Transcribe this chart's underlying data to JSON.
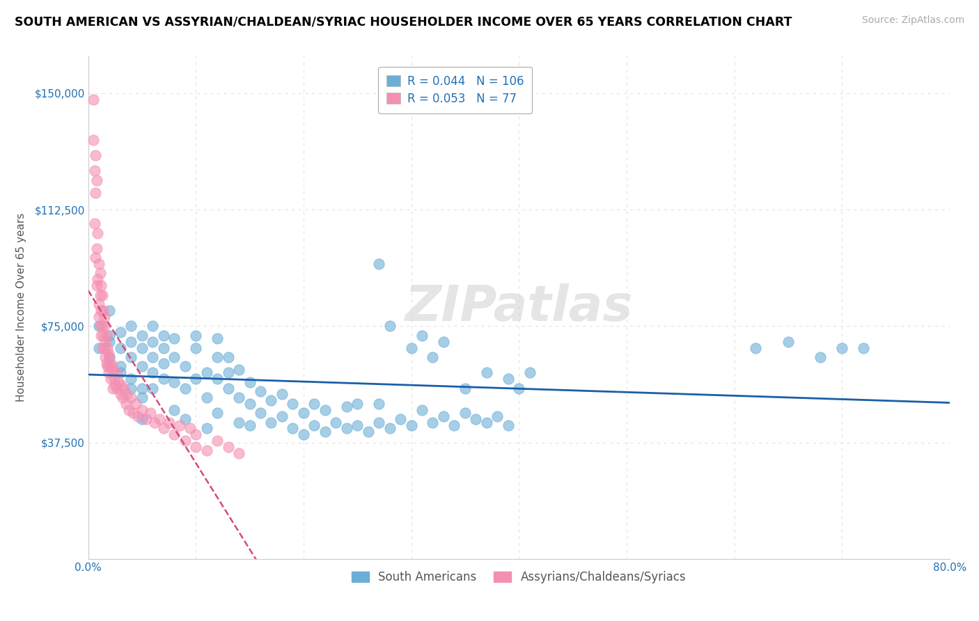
{
  "title": "SOUTH AMERICAN VS ASSYRIAN/CHALDEAN/SYRIAC HOUSEHOLDER INCOME OVER 65 YEARS CORRELATION CHART",
  "source": "Source: ZipAtlas.com",
  "ylabel": "Householder Income Over 65 years",
  "xlim": [
    0.0,
    0.8
  ],
  "ylim": [
    0,
    162000
  ],
  "xticks": [
    0.0,
    0.1,
    0.2,
    0.3,
    0.4,
    0.5,
    0.6,
    0.7,
    0.8
  ],
  "xticklabels": [
    "0.0%",
    "",
    "",
    "",
    "",
    "",
    "",
    "",
    "80.0%"
  ],
  "yticks": [
    0,
    37500,
    75000,
    112500,
    150000
  ],
  "yticklabels": [
    "",
    "$37,500",
    "$75,000",
    "$112,500",
    "$150,000"
  ],
  "legend1_r": "0.044",
  "legend1_n": "106",
  "legend2_r": "0.053",
  "legend2_n": "77",
  "legend1_label": "South Americans",
  "legend2_label": "Assyrians/Chaldeans/Syriacs",
  "color_blue": "#6baed6",
  "color_pink": "#f48fb1",
  "color_blue_line": "#1a5fa8",
  "color_pink_line": "#d44b7a",
  "watermark": "ZIPatlas",
  "blue_scatter_x": [
    0.01,
    0.01,
    0.02,
    0.02,
    0.02,
    0.02,
    0.03,
    0.03,
    0.03,
    0.03,
    0.04,
    0.04,
    0.04,
    0.04,
    0.04,
    0.05,
    0.05,
    0.05,
    0.05,
    0.05,
    0.05,
    0.06,
    0.06,
    0.06,
    0.06,
    0.06,
    0.07,
    0.07,
    0.07,
    0.07,
    0.08,
    0.08,
    0.08,
    0.08,
    0.09,
    0.09,
    0.09,
    0.1,
    0.1,
    0.1,
    0.11,
    0.11,
    0.11,
    0.12,
    0.12,
    0.12,
    0.12,
    0.13,
    0.13,
    0.13,
    0.14,
    0.14,
    0.14,
    0.15,
    0.15,
    0.15,
    0.16,
    0.16,
    0.17,
    0.17,
    0.18,
    0.18,
    0.19,
    0.19,
    0.2,
    0.2,
    0.21,
    0.21,
    0.22,
    0.22,
    0.23,
    0.24,
    0.24,
    0.25,
    0.25,
    0.26,
    0.27,
    0.27,
    0.28,
    0.29,
    0.3,
    0.31,
    0.32,
    0.33,
    0.34,
    0.35,
    0.36,
    0.37,
    0.38,
    0.39,
    0.28,
    0.3,
    0.31,
    0.32,
    0.33,
    0.35,
    0.37,
    0.39,
    0.4,
    0.41,
    0.27,
    0.62,
    0.65,
    0.68,
    0.7,
    0.72
  ],
  "blue_scatter_y": [
    75000,
    68000,
    72000,
    65000,
    80000,
    70000,
    62000,
    68000,
    73000,
    60000,
    55000,
    65000,
    75000,
    58000,
    70000,
    62000,
    68000,
    55000,
    72000,
    45000,
    52000,
    60000,
    70000,
    65000,
    55000,
    75000,
    63000,
    58000,
    72000,
    68000,
    48000,
    57000,
    65000,
    71000,
    45000,
    55000,
    62000,
    68000,
    58000,
    72000,
    42000,
    52000,
    60000,
    58000,
    65000,
    71000,
    47000,
    55000,
    60000,
    65000,
    44000,
    52000,
    61000,
    43000,
    50000,
    57000,
    47000,
    54000,
    44000,
    51000,
    46000,
    53000,
    42000,
    50000,
    40000,
    47000,
    43000,
    50000,
    41000,
    48000,
    44000,
    42000,
    49000,
    43000,
    50000,
    41000,
    44000,
    50000,
    42000,
    45000,
    43000,
    48000,
    44000,
    46000,
    43000,
    47000,
    45000,
    44000,
    46000,
    43000,
    75000,
    68000,
    72000,
    65000,
    70000,
    55000,
    60000,
    58000,
    55000,
    60000,
    95000,
    68000,
    70000,
    65000,
    68000,
    68000
  ],
  "pink_scatter_x": [
    0.005,
    0.005,
    0.006,
    0.006,
    0.007,
    0.007,
    0.007,
    0.008,
    0.008,
    0.008,
    0.009,
    0.009,
    0.01,
    0.01,
    0.01,
    0.011,
    0.011,
    0.011,
    0.012,
    0.012,
    0.012,
    0.013,
    0.013,
    0.013,
    0.014,
    0.014,
    0.015,
    0.015,
    0.015,
    0.016,
    0.016,
    0.017,
    0.017,
    0.018,
    0.018,
    0.019,
    0.019,
    0.02,
    0.02,
    0.021,
    0.021,
    0.022,
    0.023,
    0.023,
    0.024,
    0.025,
    0.026,
    0.027,
    0.028,
    0.03,
    0.031,
    0.032,
    0.033,
    0.035,
    0.036,
    0.038,
    0.04,
    0.042,
    0.044,
    0.046,
    0.05,
    0.054,
    0.058,
    0.062,
    0.066,
    0.07,
    0.075,
    0.08,
    0.085,
    0.09,
    0.095,
    0.1,
    0.1,
    0.11,
    0.12,
    0.13,
    0.14
  ],
  "pink_scatter_y": [
    148000,
    135000,
    125000,
    108000,
    130000,
    118000,
    97000,
    122000,
    100000,
    88000,
    105000,
    90000,
    95000,
    82000,
    78000,
    92000,
    85000,
    75000,
    88000,
    80000,
    72000,
    85000,
    75000,
    68000,
    80000,
    72000,
    78000,
    68000,
    75000,
    70000,
    65000,
    72000,
    63000,
    68000,
    62000,
    66000,
    60000,
    65000,
    62000,
    63000,
    58000,
    62000,
    60000,
    55000,
    58000,
    56000,
    60000,
    55000,
    57000,
    53000,
    56000,
    52000,
    55000,
    50000,
    53000,
    48000,
    52000,
    47000,
    50000,
    46000,
    48000,
    45000,
    47000,
    44000,
    45000,
    42000,
    44000,
    40000,
    43000,
    38000,
    42000,
    36000,
    40000,
    35000,
    38000,
    36000,
    34000
  ]
}
